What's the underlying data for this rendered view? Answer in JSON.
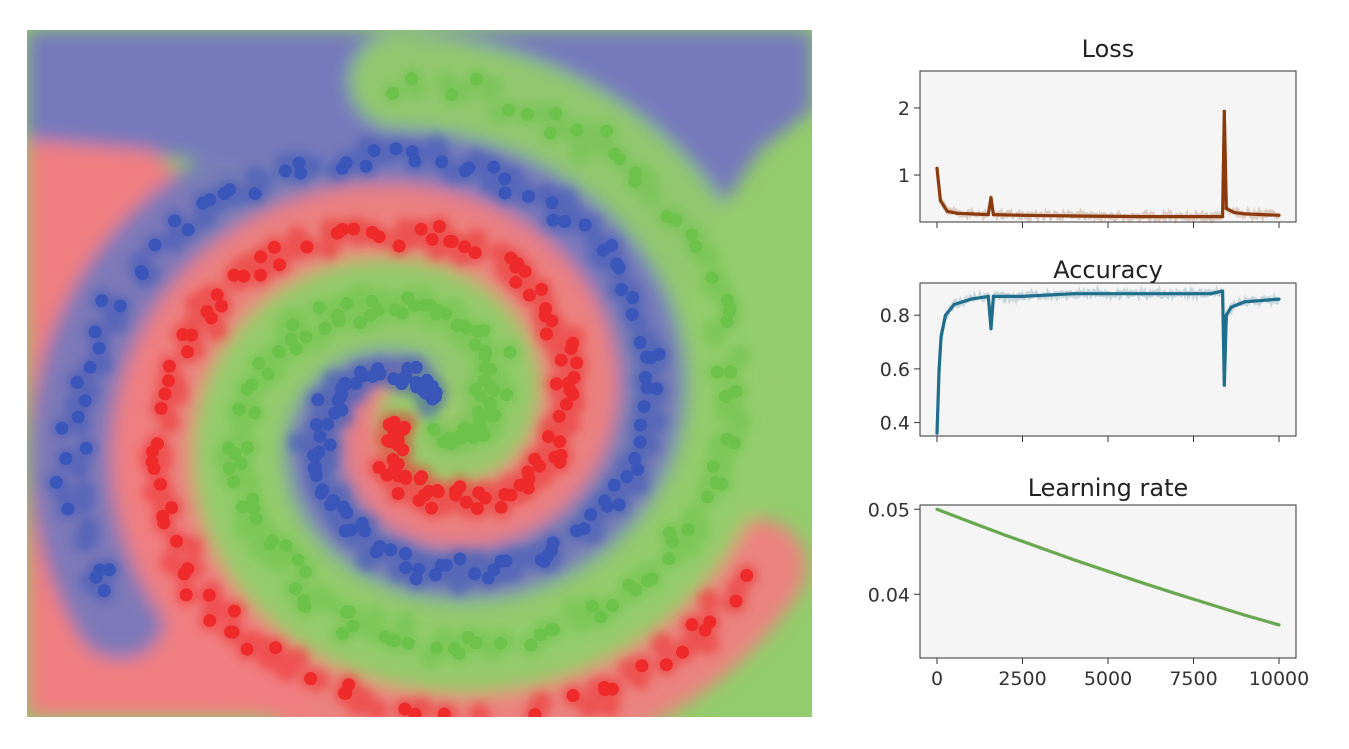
{
  "colors": {
    "class_blue": "#3a56b8",
    "class_red": "#ee2a2a",
    "class_green": "#6cc24a",
    "region_blue": "#7679bb",
    "region_red": "#f07e80",
    "region_green": "#93cc6c",
    "loss_line": "#8a3a0c",
    "accuracy_line": "#1f6e8c",
    "lr_line": "#6aa84f",
    "plot_bg": "#f5f5f5"
  },
  "chart_data": [
    {
      "type": "scatter",
      "title": "",
      "description_source": "three-class spiral dataset over colored decision regions",
      "series": [
        {
          "color": "#3a56b8",
          "class": 0
        },
        {
          "color": "#ee2a2a",
          "class": 1
        },
        {
          "color": "#6cc24a",
          "class": 2
        }
      ],
      "points_per_class": 300,
      "turns": 1.5
    },
    {
      "type": "line",
      "title": "Loss",
      "xlim": [
        0,
        10000
      ],
      "ylim": [
        0.3,
        2.55
      ],
      "yticks": [
        "1",
        "2"
      ],
      "ytick_values": [
        1,
        2
      ],
      "x": [
        0,
        100,
        300,
        600,
        1000,
        1500,
        1580,
        1650,
        2500,
        4000,
        6000,
        8000,
        8350,
        8400,
        8460,
        8700,
        9000,
        10000
      ],
      "y": [
        1.1,
        0.62,
        0.46,
        0.43,
        0.42,
        0.41,
        0.66,
        0.41,
        0.4,
        0.39,
        0.38,
        0.38,
        0.38,
        1.95,
        0.5,
        0.44,
        0.42,
        0.4
      ]
    },
    {
      "type": "line",
      "title": "Accuracy",
      "xlim": [
        0,
        10000
      ],
      "ylim": [
        0.35,
        0.92
      ],
      "yticks": [
        "0.4",
        "0.6",
        "0.8"
      ],
      "ytick_values": [
        0.4,
        0.6,
        0.8
      ],
      "x": [
        0,
        60,
        120,
        250,
        500,
        1000,
        1500,
        1580,
        1650,
        2500,
        4000,
        6000,
        8000,
        8350,
        8400,
        8460,
        8600,
        9000,
        10000
      ],
      "y": [
        0.36,
        0.6,
        0.72,
        0.8,
        0.84,
        0.86,
        0.87,
        0.75,
        0.87,
        0.87,
        0.88,
        0.88,
        0.88,
        0.89,
        0.54,
        0.8,
        0.83,
        0.85,
        0.86
      ]
    },
    {
      "type": "line",
      "title": "Learning rate",
      "xlim": [
        0,
        10000
      ],
      "ylim": [
        0.0325,
        0.0505
      ],
      "yticks": [
        "0.04",
        "0.05"
      ],
      "ytick_values": [
        0.04,
        0.05
      ],
      "xticks": [
        "0",
        "2500",
        "5000",
        "7500",
        "10000"
      ],
      "xtick_values": [
        0,
        2500,
        5000,
        7500,
        10000
      ],
      "x": [
        0,
        1000,
        2000,
        3000,
        4000,
        5000,
        6000,
        7000,
        8000,
        9000,
        10000
      ],
      "y": [
        0.05,
        0.04845,
        0.04695,
        0.0455,
        0.04405,
        0.0427,
        0.04135,
        0.04005,
        0.0388,
        0.03755,
        0.0364
      ]
    }
  ]
}
